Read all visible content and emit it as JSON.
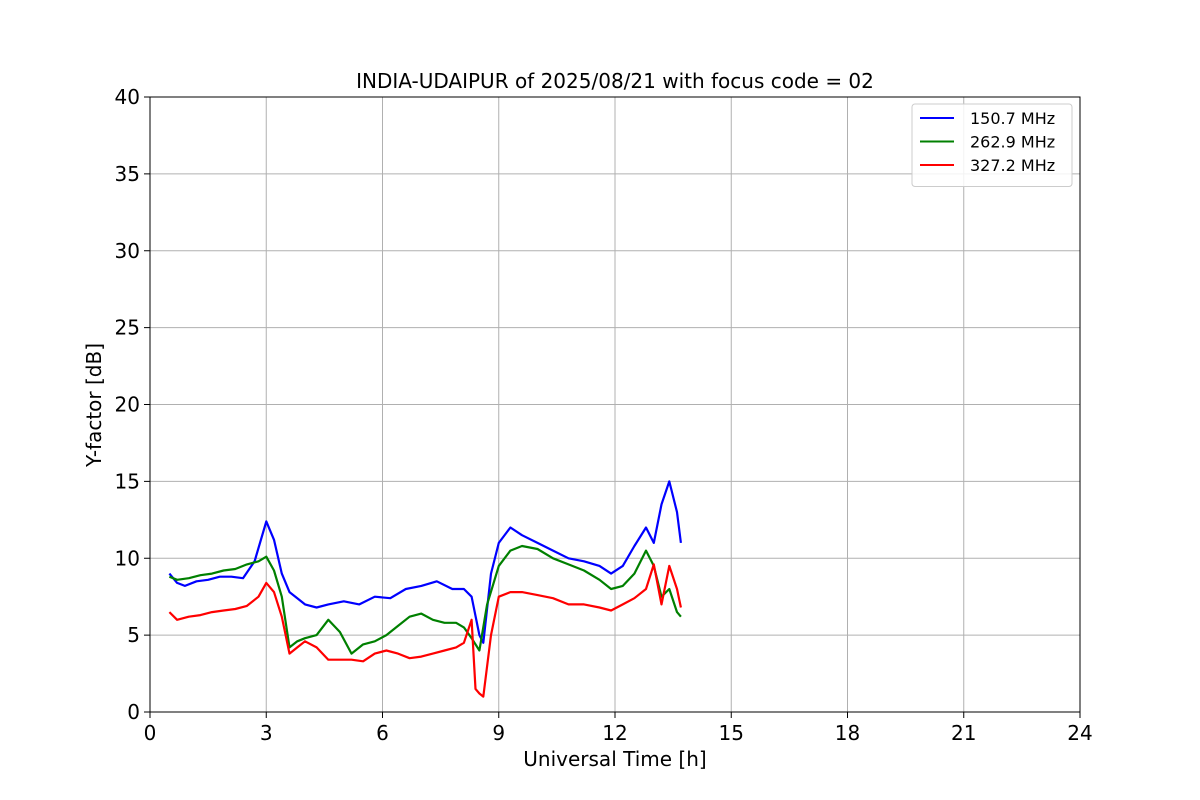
{
  "chart_data": {
    "type": "line",
    "title": "INDIA-UDAIPUR of 2025/08/21 with focus code = 02",
    "xlabel": "Universal Time [h]",
    "ylabel": "Y-factor [dB]",
    "xlim": [
      0,
      24
    ],
    "ylim": [
      0,
      40
    ],
    "xticks": [
      0,
      3,
      6,
      9,
      12,
      15,
      18,
      21,
      24
    ],
    "yticks": [
      0,
      5,
      10,
      15,
      20,
      25,
      30,
      35,
      40
    ],
    "grid": true,
    "legend_position": "top-right",
    "series": [
      {
        "name": "150.7 MHz",
        "color": "#0000ff",
        "x": [
          0.5,
          0.7,
          0.9,
          1.2,
          1.5,
          1.8,
          2.1,
          2.4,
          2.7,
          3.0,
          3.2,
          3.4,
          3.6,
          3.8,
          4.0,
          4.3,
          4.6,
          5.0,
          5.4,
          5.8,
          6.2,
          6.6,
          7.0,
          7.4,
          7.8,
          8.1,
          8.3,
          8.5,
          8.6,
          8.8,
          9.0,
          9.3,
          9.6,
          10.0,
          10.4,
          10.8,
          11.2,
          11.6,
          11.9,
          12.2,
          12.5,
          12.8,
          13.0,
          13.2,
          13.4,
          13.6,
          13.7
        ],
        "y": [
          9.0,
          8.4,
          8.2,
          8.5,
          8.6,
          8.8,
          8.8,
          8.7,
          9.8,
          12.4,
          11.2,
          9.0,
          7.8,
          7.4,
          7.0,
          6.8,
          7.0,
          7.2,
          7.0,
          7.5,
          7.4,
          8.0,
          8.2,
          8.5,
          8.0,
          8.0,
          7.5,
          5.0,
          4.5,
          9.0,
          11.0,
          12.0,
          11.5,
          11.0,
          10.5,
          10.0,
          9.8,
          9.5,
          9.0,
          9.5,
          10.8,
          12.0,
          11.0,
          13.5,
          15.0,
          13.0,
          11.0
        ]
      },
      {
        "name": "262.9 MHz",
        "color": "#008000",
        "x": [
          0.5,
          0.7,
          1.0,
          1.3,
          1.6,
          1.9,
          2.2,
          2.5,
          2.8,
          3.0,
          3.2,
          3.4,
          3.6,
          3.8,
          4.0,
          4.3,
          4.6,
          4.9,
          5.2,
          5.5,
          5.8,
          6.1,
          6.4,
          6.7,
          7.0,
          7.3,
          7.6,
          7.9,
          8.1,
          8.3,
          8.5,
          8.7,
          9.0,
          9.3,
          9.6,
          10.0,
          10.4,
          10.8,
          11.2,
          11.6,
          11.9,
          12.2,
          12.5,
          12.8,
          13.0,
          13.2,
          13.4,
          13.6,
          13.7
        ],
        "y": [
          8.8,
          8.6,
          8.7,
          8.9,
          9.0,
          9.2,
          9.3,
          9.6,
          9.8,
          10.1,
          9.2,
          7.5,
          4.2,
          4.6,
          4.8,
          5.0,
          6.0,
          5.2,
          3.8,
          4.4,
          4.6,
          5.0,
          5.6,
          6.2,
          6.4,
          6.0,
          5.8,
          5.8,
          5.5,
          4.8,
          4.0,
          7.0,
          9.5,
          10.5,
          10.8,
          10.6,
          10.0,
          9.6,
          9.2,
          8.6,
          8.0,
          8.2,
          9.0,
          10.5,
          9.5,
          7.5,
          8.0,
          6.5,
          6.2
        ]
      },
      {
        "name": "327.2 MHz",
        "color": "#ff0000",
        "x": [
          0.5,
          0.7,
          1.0,
          1.3,
          1.6,
          1.9,
          2.2,
          2.5,
          2.8,
          3.0,
          3.2,
          3.4,
          3.6,
          3.8,
          4.0,
          4.3,
          4.6,
          4.9,
          5.2,
          5.5,
          5.8,
          6.1,
          6.4,
          6.7,
          7.0,
          7.3,
          7.6,
          7.9,
          8.1,
          8.3,
          8.4,
          8.5,
          8.6,
          8.8,
          9.0,
          9.3,
          9.6,
          10.0,
          10.4,
          10.8,
          11.2,
          11.6,
          11.9,
          12.2,
          12.5,
          12.8,
          13.0,
          13.2,
          13.4,
          13.6,
          13.7
        ],
        "y": [
          6.5,
          6.0,
          6.2,
          6.3,
          6.5,
          6.6,
          6.7,
          6.9,
          7.5,
          8.4,
          7.8,
          6.2,
          3.8,
          4.2,
          4.6,
          4.2,
          3.4,
          3.4,
          3.4,
          3.3,
          3.8,
          4.0,
          3.8,
          3.5,
          3.6,
          3.8,
          4.0,
          4.2,
          4.5,
          6.0,
          1.5,
          1.2,
          1.0,
          5.0,
          7.5,
          7.8,
          7.8,
          7.6,
          7.4,
          7.0,
          7.0,
          6.8,
          6.6,
          7.0,
          7.4,
          8.0,
          9.6,
          7.0,
          9.5,
          8.0,
          6.8
        ]
      }
    ]
  }
}
